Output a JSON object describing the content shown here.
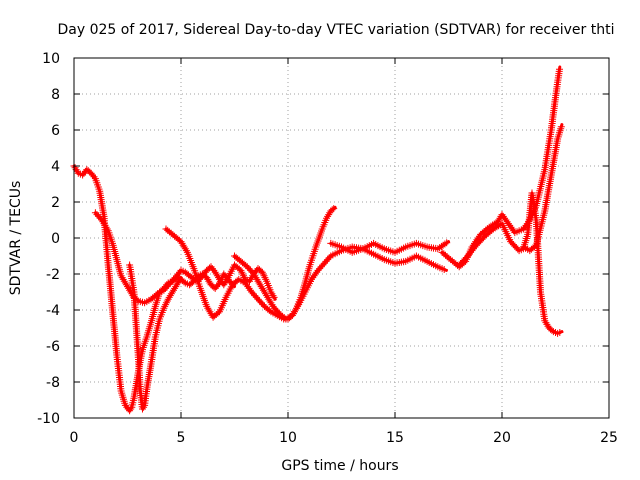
{
  "chart_data": {
    "type": "scatter",
    "title": "Day 025 of 2017, Sidereal Day-to-day VTEC variation (SDTVAR) for receiver thti",
    "xlabel": "GPS time / hours",
    "ylabel": "SDTVAR / TECUs",
    "xlim": [
      0,
      25
    ],
    "ylim": [
      -10,
      10
    ],
    "xticks": [
      0,
      5,
      10,
      15,
      20,
      25
    ],
    "yticks": [
      -10,
      -8,
      -6,
      -4,
      -2,
      0,
      2,
      4,
      6,
      8,
      10
    ],
    "grid": true,
    "marker": "plus",
    "color": "#ff0000",
    "series": [
      {
        "x": [
          0.0,
          0.2,
          0.4,
          0.6,
          0.8,
          1.0,
          1.2,
          1.4,
          1.6,
          1.8,
          2.0,
          2.2,
          2.4,
          2.6,
          2.7,
          2.8,
          2.9,
          3.0,
          3.1,
          3.2,
          3.4,
          3.6,
          3.8,
          4.0,
          4.2,
          4.4,
          4.6,
          4.8,
          5.0,
          5.2,
          5.4,
          5.6,
          5.8,
          6.0,
          6.2,
          6.4,
          6.6,
          6.8,
          7.0,
          7.2,
          7.5
        ],
        "y": [
          4.0,
          3.6,
          3.5,
          3.8,
          3.6,
          3.3,
          2.6,
          1.2,
          -1.5,
          -4.0,
          -6.5,
          -8.5,
          -9.3,
          -9.6,
          -9.4,
          -8.9,
          -8.2,
          -7.5,
          -6.8,
          -6.2,
          -5.5,
          -4.7,
          -3.8,
          -3.0,
          -2.8,
          -2.5,
          -2.4,
          -2.2,
          -2.3,
          -2.5,
          -2.6,
          -2.4,
          -2.1,
          -2.0,
          -2.2,
          -2.6,
          -2.8,
          -2.5,
          -2.0,
          -2.3,
          -2.7
        ]
      },
      {
        "x": [
          1.0,
          1.3,
          1.6,
          1.8,
          2.0,
          2.2,
          2.4,
          2.6,
          2.8,
          3.0,
          3.3,
          3.6,
          3.9,
          4.2,
          4.5,
          4.8,
          5.0,
          5.2,
          5.5,
          5.8,
          6.0,
          6.2,
          6.4,
          6.6,
          6.8,
          7.0,
          7.2,
          7.5,
          7.8,
          8.0,
          8.2,
          8.4,
          8.6,
          8.8,
          9.0,
          9.2,
          9.4
        ],
        "y": [
          1.4,
          1.0,
          0.4,
          -0.3,
          -1.2,
          -2.1,
          -2.5,
          -2.9,
          -3.3,
          -3.5,
          -3.6,
          -3.4,
          -3.1,
          -2.9,
          -2.5,
          -2.1,
          -1.8,
          -1.9,
          -2.2,
          -2.4,
          -2.1,
          -1.8,
          -1.6,
          -1.9,
          -2.3,
          -2.6,
          -2.2,
          -1.5,
          -1.8,
          -2.3,
          -2.4,
          -2.0,
          -1.7,
          -1.9,
          -2.4,
          -3.0,
          -3.4
        ]
      },
      {
        "x": [
          2.6,
          2.8,
          3.0,
          3.1,
          3.2,
          3.3,
          3.4,
          3.6,
          3.8,
          4.0,
          4.2,
          4.4,
          4.6,
          4.8,
          5.0
        ],
        "y": [
          -1.5,
          -3.0,
          -6.5,
          -8.5,
          -9.5,
          -9.3,
          -8.4,
          -7.0,
          -5.5,
          -4.5,
          -3.9,
          -3.4,
          -3.0,
          -2.6,
          -2.2
        ]
      },
      {
        "x": [
          4.3,
          4.7,
          5.0,
          5.3,
          5.6,
          5.9,
          6.2,
          6.5,
          6.8,
          7.1,
          7.4,
          7.7,
          8.0,
          8.3,
          8.6,
          8.9,
          9.2,
          9.5,
          9.8,
          10.0,
          10.2,
          10.4,
          10.6,
          10.8,
          11.0,
          11.3,
          11.6,
          11.8,
          12.0,
          12.2
        ],
        "y": [
          0.5,
          0.1,
          -0.2,
          -0.8,
          -1.7,
          -2.8,
          -3.8,
          -4.4,
          -4.1,
          -3.3,
          -2.6,
          -2.3,
          -2.5,
          -3.0,
          -3.4,
          -3.8,
          -4.1,
          -4.3,
          -4.5,
          -4.5,
          -4.3,
          -3.9,
          -3.3,
          -2.5,
          -1.6,
          -0.5,
          0.5,
          1.1,
          1.5,
          1.7
        ]
      },
      {
        "x": [
          7.5,
          7.8,
          8.1,
          8.4,
          8.7,
          9.0,
          9.3,
          9.6,
          9.9,
          10.2,
          10.5,
          10.8,
          11.1,
          11.4,
          11.7,
          12.0,
          12.5,
          13.0,
          13.5,
          14.0,
          14.5,
          15.0,
          15.5,
          16.0,
          16.5,
          17.0,
          17.4
        ],
        "y": [
          -1.0,
          -1.3,
          -1.6,
          -2.0,
          -2.6,
          -3.2,
          -3.8,
          -4.2,
          -4.5,
          -4.3,
          -3.7,
          -3.0,
          -2.3,
          -1.8,
          -1.4,
          -1.0,
          -0.7,
          -0.5,
          -0.6,
          -0.9,
          -1.2,
          -1.4,
          -1.3,
          -1.0,
          -1.3,
          -1.6,
          -1.8
        ]
      },
      {
        "x": [
          12.0,
          12.5,
          13.0,
          13.5,
          14.0,
          14.5,
          15.0,
          15.5,
          16.0,
          16.5,
          17.0,
          17.5
        ],
        "y": [
          -0.3,
          -0.5,
          -0.8,
          -0.6,
          -0.3,
          -0.6,
          -0.8,
          -0.5,
          -0.3,
          -0.5,
          -0.6,
          -0.2
        ]
      },
      {
        "x": [
          17.2,
          17.6,
          18.0,
          18.3,
          18.6,
          19.0,
          19.4,
          19.8,
          20.0,
          20.3,
          20.6,
          21.0,
          21.3,
          21.6,
          22.0,
          22.3,
          22.5,
          22.7
        ],
        "y": [
          -0.8,
          -1.2,
          -1.6,
          -1.3,
          -0.5,
          0.2,
          0.6,
          0.9,
          1.3,
          0.8,
          0.3,
          0.5,
          1.0,
          1.8,
          3.8,
          6.0,
          7.8,
          9.5
        ]
      },
      {
        "x": [
          18.0,
          18.4,
          18.8,
          19.2,
          19.6,
          20.0,
          20.4,
          20.8,
          21.0,
          21.2,
          21.4,
          21.6,
          21.8,
          22.0,
          22.2,
          22.4,
          22.6,
          22.8
        ],
        "y": [
          -1.5,
          -1.0,
          -0.4,
          0.1,
          0.5,
          0.8,
          -0.2,
          -0.7,
          -0.6,
          0.2,
          2.5,
          1.0,
          -3.0,
          -4.6,
          -5.0,
          -5.2,
          -5.3,
          -5.2
        ]
      },
      {
        "x": [
          21.0,
          21.3,
          21.6,
          22.0,
          22.3,
          22.6,
          22.8
        ],
        "y": [
          -0.5,
          -0.7,
          -0.4,
          1.5,
          3.5,
          5.5,
          6.3
        ]
      }
    ]
  }
}
